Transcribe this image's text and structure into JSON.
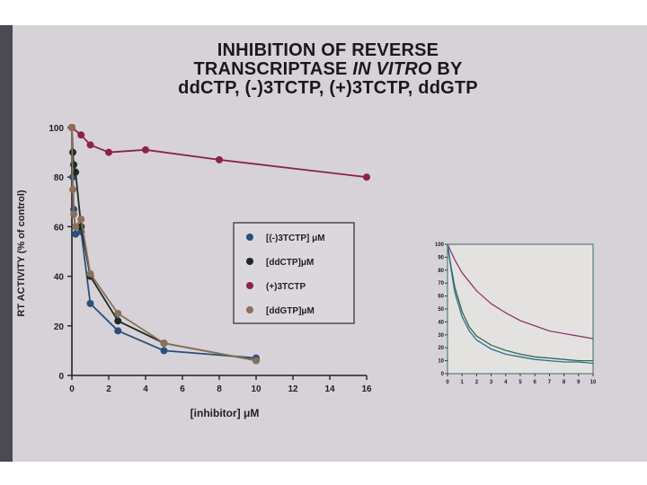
{
  "title": {
    "line1": "INHIBITION OF REVERSE",
    "line2_a": "TRANSCRIPTASE ",
    "line2_b": "IN VITRO",
    "line2_c": " BY",
    "line3": "ddCTP, (-)3TCTP, (+)3TCTP, ddGTP"
  },
  "colors": {
    "neg3tctp": "#2a4f7a",
    "ddctp": "#1e2a22",
    "pos3tctp": "#8c2342",
    "ddgtp": "#8a7058",
    "inset_neg3tctp": "#2d6f8c",
    "inset_ddctp": "#2f6e55",
    "inset_pos3tctp": "#8a3a6c"
  },
  "chart_data": [
    {
      "type": "line",
      "xlabel": "[inhibitor] μM",
      "ylabel": "RT ACTIVITY (% of control)",
      "xlim": [
        0,
        16
      ],
      "ylim": [
        0,
        100
      ],
      "xticks": [
        "0",
        "2",
        "4",
        "6",
        "8",
        "10",
        "12",
        "14",
        "16"
      ],
      "yticks": [
        "0",
        "20",
        "40",
        "60",
        "80",
        "100"
      ],
      "legend_placement": "center",
      "grid": false,
      "series": [
        {
          "name": "[(-)3TCTP] μM",
          "color_key": "neg3tctp",
          "x": [
            0,
            0.05,
            0.1,
            0.2,
            0.5,
            1,
            2.5,
            5,
            10
          ],
          "y": [
            100,
            80,
            67,
            57,
            58,
            29,
            18,
            10,
            7
          ]
        },
        {
          "name": "[ddCTP]μM",
          "color_key": "ddctp",
          "x": [
            0,
            0.05,
            0.1,
            0.2,
            0.5,
            1,
            2.5,
            5,
            10
          ],
          "y": [
            100,
            90,
            85,
            82,
            60,
            40,
            22,
            13,
            6
          ]
        },
        {
          "name": "(+)3TCTP",
          "color_key": "pos3tctp",
          "x": [
            0,
            0.5,
            1,
            2,
            4,
            8,
            16
          ],
          "y": [
            100,
            97,
            93,
            90,
            91,
            87,
            80
          ]
        },
        {
          "name": "[ddGTP]μM",
          "color_key": "ddgtp",
          "x": [
            0,
            0.05,
            0.1,
            0.2,
            0.5,
            1,
            2.5,
            5,
            10
          ],
          "y": [
            100,
            75,
            65,
            60,
            63,
            41,
            25,
            13,
            6
          ]
        }
      ]
    },
    {
      "type": "line",
      "xlim": [
        0,
        10
      ],
      "ylim": [
        0,
        100
      ],
      "xticks": [
        "0",
        "1",
        "2",
        "3",
        "4",
        "5",
        "6",
        "7",
        "8",
        "9",
        "10"
      ],
      "yticks": [
        "0",
        "10",
        "20",
        "30",
        "40",
        "50",
        "60",
        "70",
        "80",
        "90",
        "100"
      ],
      "grid": false,
      "series": [
        {
          "color_key": "inset_pos3tctp",
          "x": [
            0,
            0.5,
            1,
            2,
            3,
            4,
            5,
            6,
            7,
            8,
            9,
            10
          ],
          "y": [
            100,
            88,
            78,
            64,
            54,
            47,
            41,
            37,
            33,
            31,
            29,
            27
          ]
        },
        {
          "color_key": "inset_ddctp",
          "x": [
            0,
            0.25,
            0.5,
            1,
            1.5,
            2,
            3,
            4,
            5,
            6,
            7,
            8,
            9,
            10
          ],
          "y": [
            100,
            82,
            67,
            48,
            36,
            29,
            22,
            18,
            15,
            13,
            12,
            11,
            10,
            10
          ]
        },
        {
          "color_key": "inset_neg3tctp",
          "x": [
            0,
            0.25,
            0.5,
            1,
            1.5,
            2,
            3,
            4,
            5,
            6,
            7,
            8,
            9,
            10
          ],
          "y": [
            100,
            80,
            63,
            44,
            33,
            26,
            19,
            15,
            13,
            11,
            10,
            9,
            9,
            8
          ]
        }
      ]
    }
  ]
}
